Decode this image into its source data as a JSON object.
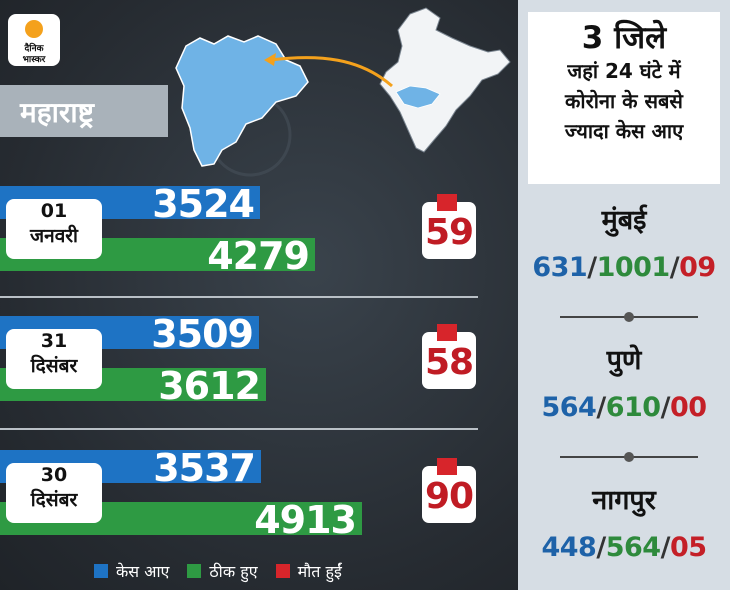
{
  "brand": {
    "line1": "दैनिक",
    "line2": "भास्कर"
  },
  "state_label": "महाराष्ट्र",
  "chart_data": {
    "type": "bar",
    "categories": [
      "01 जनवरी",
      "31 दिसंबर",
      "30 दिसंबर"
    ],
    "date_lines": [
      [
        "01",
        "जनवरी"
      ],
      [
        "31",
        "दिसंबर"
      ],
      [
        "30",
        "दिसंबर"
      ]
    ],
    "series": [
      {
        "name": "केस आए",
        "values": [
          3524,
          3509,
          3537
        ],
        "color": "#1e73c4"
      },
      {
        "name": "ठीक हुए",
        "values": [
          4279,
          3612,
          4913
        ],
        "color": "#2e9a43"
      }
    ],
    "deaths": {
      "name": "मौत हुईं",
      "values": [
        59,
        58,
        90
      ],
      "color": "#d7252b"
    },
    "legend_position": "bottom"
  },
  "side_panel": {
    "title_line1": "3 जिले",
    "title_line2": "जहां 24 घंटे में",
    "title_line3": "कोरोना के सबसे",
    "title_line4": "ज्यादा केस आए",
    "cities": [
      {
        "name": "मुंबई",
        "cases": "631",
        "recovered": "1001",
        "deaths": "09"
      },
      {
        "name": "पुणे",
        "cases": "564",
        "recovered": "610",
        "deaths": "00"
      },
      {
        "name": "नागपुर",
        "cases": "448",
        "recovered": "564",
        "deaths": "05"
      }
    ],
    "separator": "/"
  }
}
